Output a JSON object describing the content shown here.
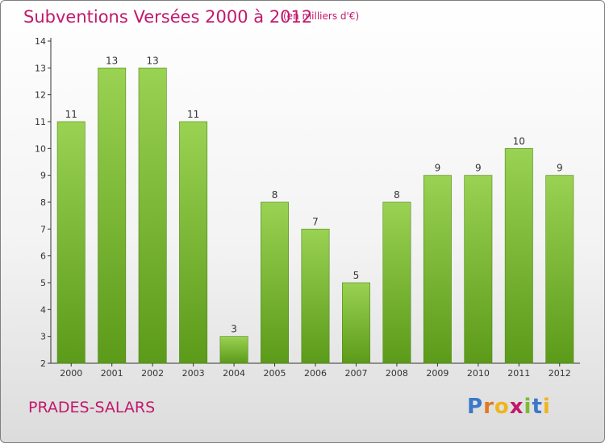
{
  "header": {
    "title": "Subventions Versées 2000 à 2012",
    "subtitle": "(en milliers d'€)"
  },
  "footer": {
    "commune": "PRADES-SALARS",
    "logo_letters": [
      "P",
      "r",
      "o",
      "x",
      "i",
      "t",
      "i"
    ],
    "logo_colors": [
      "#3a78c9",
      "#e2791e",
      "#f0b41c",
      "#c2186c",
      "#7cb935",
      "#3a78c9",
      "#f0b41c"
    ]
  },
  "chart_data": {
    "type": "bar",
    "categories": [
      "2000",
      "2001",
      "2002",
      "2003",
      "2004",
      "2005",
      "2006",
      "2007",
      "2008",
      "2009",
      "2010",
      "2011",
      "2012"
    ],
    "values": [
      11,
      13,
      13,
      11,
      3,
      8,
      7,
      5,
      8,
      9,
      9,
      10,
      9
    ],
    "data_labels": [
      "11",
      "13",
      "13",
      "11",
      "3",
      "8",
      "7",
      "5",
      "8",
      "9",
      "9",
      "10",
      "9"
    ],
    "yticks": [
      2,
      3,
      4,
      5,
      6,
      7,
      8,
      9,
      10,
      11,
      12,
      13,
      14
    ],
    "ylim": [
      2,
      14
    ],
    "xlabel": "",
    "ylabel": "",
    "grid": false,
    "colors": {
      "bar_top": "#9ad253",
      "bar_bottom": "#5c9a1a",
      "bar_edge": "#4f8716",
      "axis": "#333333"
    }
  }
}
